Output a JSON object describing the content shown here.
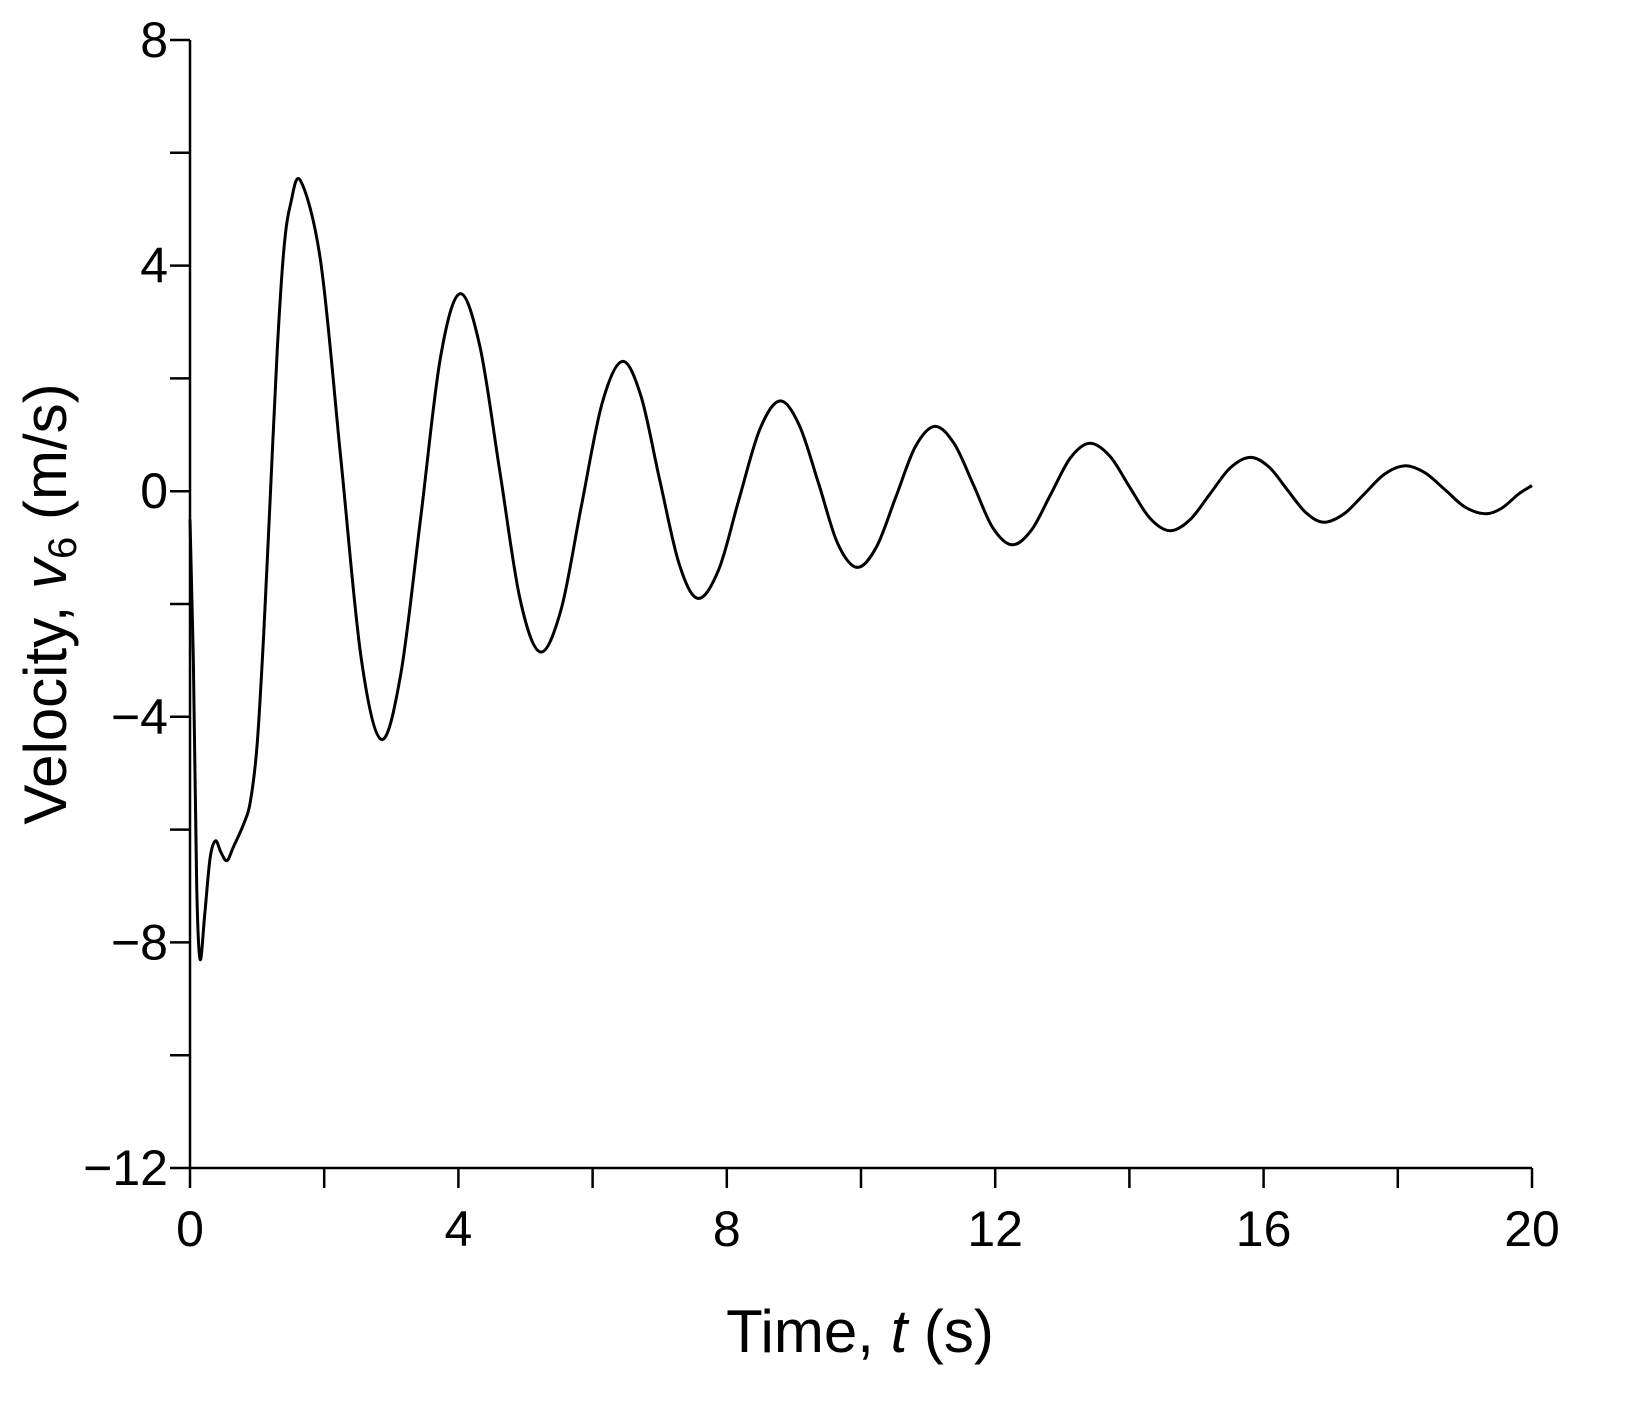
{
  "chart_data": {
    "type": "line",
    "xlabel": [
      "Time, ",
      "t",
      " (s)"
    ],
    "ylabel": [
      "Velocity, ",
      "v",
      "6",
      " (m/s)"
    ],
    "xlim": [
      0,
      20
    ],
    "ylim": [
      -12,
      8
    ],
    "xticks": [
      0,
      4,
      8,
      12,
      16,
      20
    ],
    "xminor_ticks": [
      2,
      6,
      10,
      14,
      18
    ],
    "yticks": [
      {
        "value": -12,
        "label": "−12"
      },
      {
        "value": -8,
        "label": "−8"
      },
      {
        "value": -4,
        "label": "−4"
      },
      0,
      4,
      8
    ],
    "yminor_ticks": [
      -10,
      -6,
      -2,
      2,
      6
    ],
    "grid": false,
    "series": [
      {
        "color": "#000000",
        "x": [
          0,
          0.05,
          0.1,
          0.15,
          0.22,
          0.3,
          0.38,
          0.46,
          0.55,
          0.65,
          0.8,
          0.9,
          1.0,
          1.1,
          1.2,
          1.3,
          1.4,
          1.5,
          1.65,
          1.95,
          2.25,
          2.55,
          2.85,
          3.14,
          3.44,
          3.73,
          4.02,
          4.32,
          4.62,
          4.92,
          5.22,
          5.53,
          5.83,
          6.14,
          6.44,
          6.72,
          7.0,
          7.29,
          7.57,
          7.88,
          8.18,
          8.49,
          8.79,
          9.08,
          9.37,
          9.65,
          9.94,
          10.23,
          10.52,
          10.81,
          11.1,
          11.39,
          11.68,
          11.96,
          12.25,
          12.54,
          12.83,
          13.12,
          13.41,
          13.71,
          14.0,
          14.3,
          14.6,
          14.9,
          15.2,
          15.5,
          15.8,
          16.08,
          16.35,
          16.63,
          16.9,
          17.2,
          17.5,
          17.8,
          18.1,
          18.4,
          18.7,
          19.0,
          19.3,
          19.55,
          19.8,
          20
        ],
        "values": [
          -0.5,
          -3,
          -7,
          -8.3,
          -7.5,
          -6.5,
          -6.2,
          -6.4,
          -6.55,
          -6.3,
          -5.9,
          -5.5,
          -4.5,
          -2.5,
          0,
          2.5,
          4.3,
          5.1,
          5.5,
          4.05,
          0.55,
          -2.95,
          -4.4,
          -3.25,
          -0.45,
          2.35,
          3.5,
          2.57,
          0.33,
          -1.92,
          -2.85,
          -2.1,
          -0.28,
          1.55,
          2.3,
          1.69,
          0.2,
          -1.29,
          -1.9,
          -1.39,
          -0.15,
          1.09,
          1.6,
          1.17,
          0.13,
          -0.92,
          -1.35,
          -0.99,
          -0.1,
          0.79,
          1.15,
          0.84,
          0.1,
          -0.64,
          -0.95,
          -0.69,
          -0.05,
          0.59,
          0.85,
          0.62,
          0.08,
          -0.47,
          -0.7,
          -0.51,
          -0.05,
          0.41,
          0.6,
          0.43,
          0.03,
          -0.38,
          -0.55,
          -0.4,
          -0.05,
          0.3,
          0.45,
          0.33,
          0.03,
          -0.28,
          -0.4,
          -0.3,
          -0.05,
          0.1
        ]
      }
    ]
  }
}
